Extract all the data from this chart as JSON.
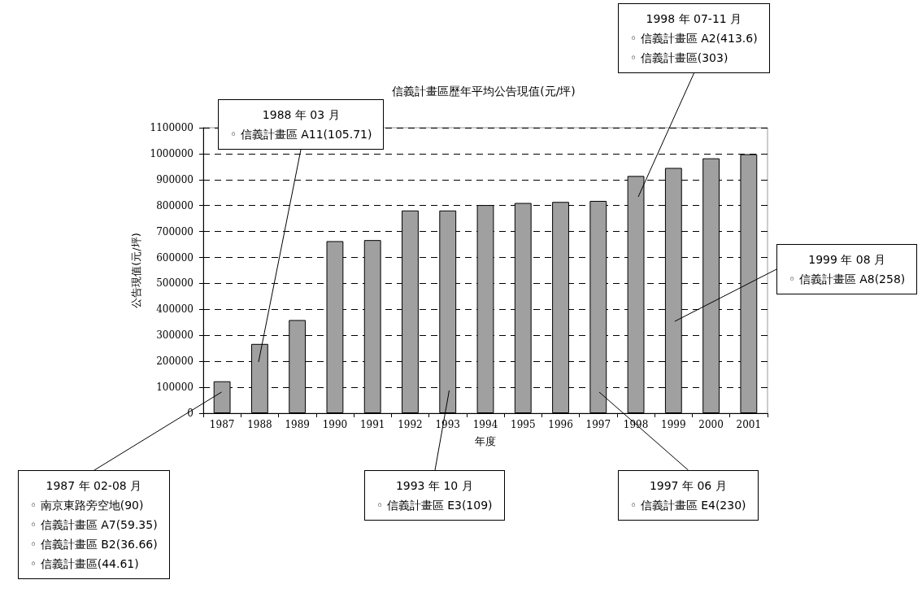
{
  "chart_data": {
    "type": "bar",
    "title": "信義計畫區歷年平均公告現值(元/坪)",
    "xlabel": "年度",
    "ylabel": "公告現值(元/坪)",
    "categories": [
      "1987",
      "1988",
      "1989",
      "1990",
      "1991",
      "1992",
      "1993",
      "1994",
      "1995",
      "1996",
      "1997",
      "1998",
      "1999",
      "2000",
      "2001"
    ],
    "values": [
      123000,
      267000,
      359000,
      663000,
      667000,
      781000,
      781000,
      802000,
      810000,
      814000,
      818000,
      914000,
      945000,
      982000,
      998000
    ],
    "color": "#a0a0a0",
    "ylim": [
      0,
      1100000
    ],
    "yticks": [
      0,
      100000,
      200000,
      300000,
      400000,
      500000,
      600000,
      700000,
      800000,
      900000,
      1000000,
      1100000
    ],
    "grid": "y",
    "annotations": [
      "1988 年 03 月\n◦ 信義計畫區 A11(105.71)",
      "1998 年 07-11 月\n◦ 信義計畫區 A2(413.6)\n◦ 信義計畫區(303)",
      "1999 年 08 月\n◦ 信義計畫區 A8(258)",
      "1987 年 02-08 月\n◦ 南京東路旁空地(90)\n◦ 信義計畫區 A7(59.35)\n◦ 信義計畫區 B2(36.66)\n◦ 信義計畫區(44.61)",
      "1993 年 10 月\n◦ 信義計畫區 E3(109)",
      "1997 年 06 月\n◦ 信義計畫區 E4(230)"
    ]
  }
}
